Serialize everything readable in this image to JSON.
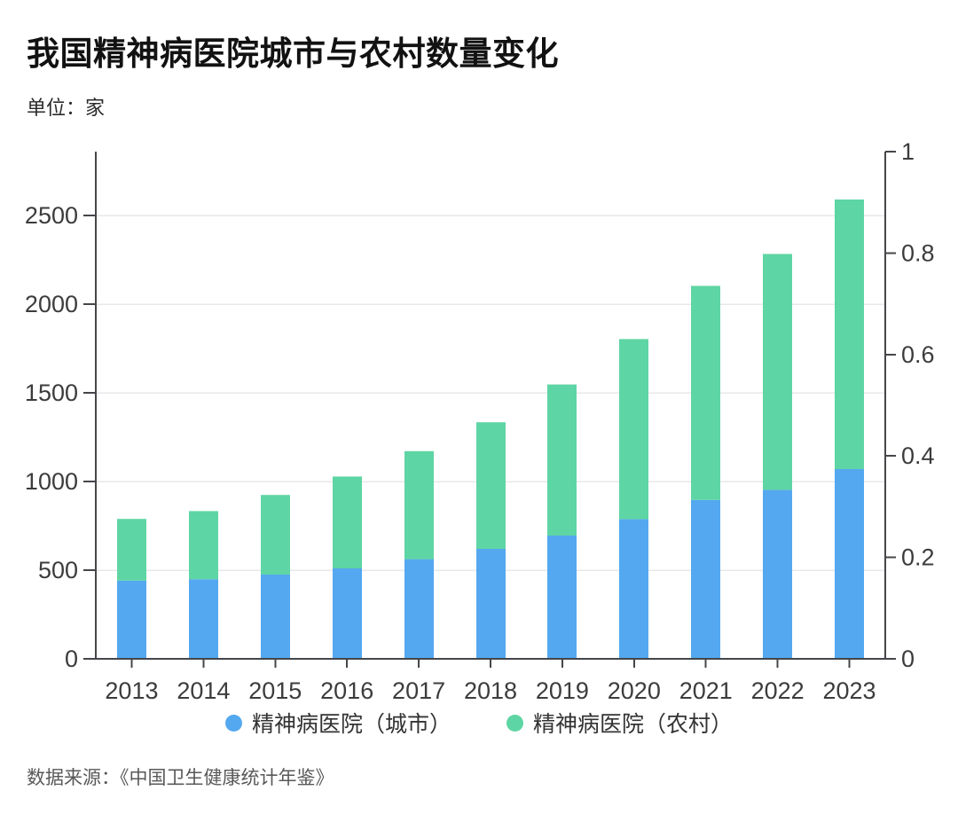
{
  "header": {
    "title": "我国精神病医院城市与农村数量变化",
    "unit_label": "单位：家"
  },
  "chart_data": {
    "type": "bar",
    "stacked": true,
    "title": "我国精神病医院城市与农村数量变化",
    "unit": "家",
    "categories": [
      "2013",
      "2014",
      "2015",
      "2016",
      "2017",
      "2018",
      "2019",
      "2020",
      "2021",
      "2022",
      "2023"
    ],
    "series": [
      {
        "name": "精神病医院（城市）",
        "color": "#54A8EF",
        "values": [
          441,
          449,
          475,
          510,
          562,
          620,
          695,
          788,
          896,
          953,
          1070
        ]
      },
      {
        "name": "精神病医院（农村）",
        "color": "#5ED5A4",
        "values": [
          348,
          384,
          449,
          518,
          609,
          714,
          852,
          1015,
          1207,
          1330,
          1520
        ]
      }
    ],
    "left_axis": {
      "ticks": [
        0,
        500,
        1000,
        1500,
        2000,
        2500
      ],
      "range": [
        0,
        2860
      ]
    },
    "right_axis": {
      "ticks": [
        0,
        0.2,
        0.4,
        0.6,
        0.8,
        1
      ],
      "range": [
        0,
        1
      ]
    },
    "grid": true,
    "legend_position": "bottom",
    "colors": {
      "axis": "#45464a",
      "gridline": "#e7e8ea",
      "axis_label": "#3c3c3c"
    }
  },
  "footer": {
    "source": "数据来源：《中国卫生健康统计年鉴》"
  }
}
